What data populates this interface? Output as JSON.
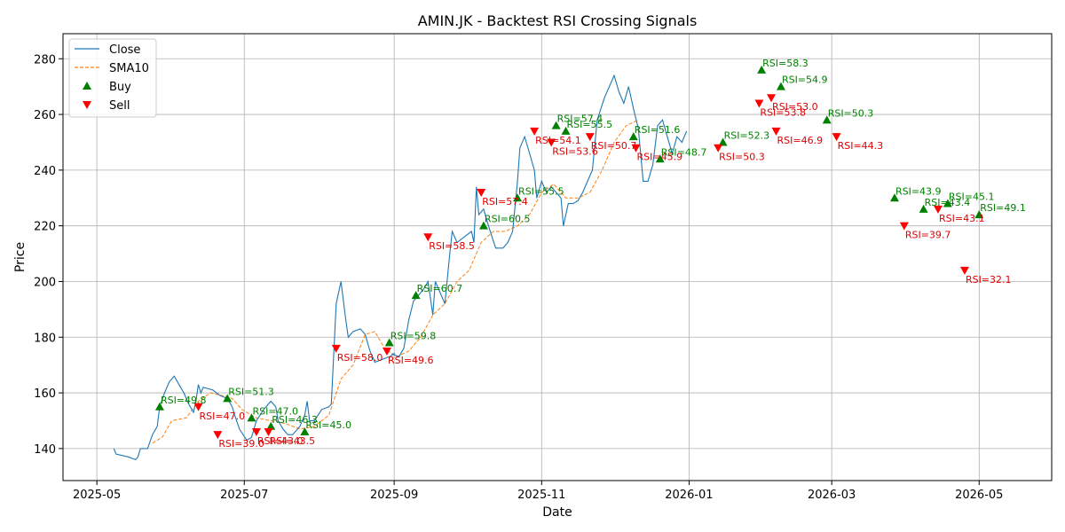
{
  "chart_data": {
    "type": "line",
    "title": "AMIN.JK - Backtest RSI Crossing Signals",
    "xlabel": "Date",
    "ylabel": "Price",
    "xlim": [
      "2025-04-17",
      "2026-05-31"
    ],
    "ylim": [
      128.5,
      289.0
    ],
    "grid": true,
    "legend_position": "top-left",
    "x_ticks": [
      "2025-05-01",
      "2025-07-01",
      "2025-09-01",
      "2025-11-01",
      "2026-01-01",
      "2026-03-01",
      "2026-05-01"
    ],
    "x_tick_labels": [
      "2025-05",
      "2025-07",
      "2025-09",
      "2025-11",
      "2026-01",
      "2026-03",
      "2026-05"
    ],
    "y_ticks": [
      140,
      160,
      180,
      200,
      220,
      240,
      260,
      280
    ],
    "colors": {
      "close": "#1f77b4",
      "sma": "#ff7f0e",
      "buy": "#008000",
      "sell": "#ff0000"
    },
    "legend": [
      {
        "label": "Close",
        "kind": "line",
        "color": "#1f77b4"
      },
      {
        "label": "SMA10",
        "kind": "dashed",
        "color": "#ff7f0e"
      },
      {
        "label": "Buy",
        "kind": "up-triangle",
        "color": "#008000"
      },
      {
        "label": "Sell",
        "kind": "down-triangle",
        "color": "#ff0000"
      }
    ],
    "series": [
      {
        "name": "Close",
        "points": [
          [
            "2025-05-08",
            140
          ],
          [
            "2025-05-09",
            138
          ],
          [
            "2025-05-14",
            137
          ],
          [
            "2025-05-17",
            136
          ],
          [
            "2025-05-18",
            137
          ],
          [
            "2025-05-19",
            140
          ],
          [
            "2025-05-22",
            140
          ],
          [
            "2025-05-24",
            145
          ],
          [
            "2025-05-26",
            148
          ],
          [
            "2025-05-27",
            155
          ],
          [
            "2025-05-29",
            160
          ],
          [
            "2025-05-31",
            164
          ],
          [
            "2025-06-02",
            166
          ],
          [
            "2025-06-04",
            163
          ],
          [
            "2025-06-06",
            160
          ],
          [
            "2025-06-08",
            156
          ],
          [
            "2025-06-10",
            153
          ],
          [
            "2025-06-11",
            157
          ],
          [
            "2025-06-12",
            163
          ],
          [
            "2025-06-13",
            160
          ],
          [
            "2025-06-14",
            162
          ],
          [
            "2025-06-18",
            161
          ],
          [
            "2025-06-21",
            159
          ],
          [
            "2025-06-24",
            158
          ],
          [
            "2025-06-26",
            155
          ],
          [
            "2025-06-27",
            152
          ],
          [
            "2025-06-29",
            147
          ],
          [
            "2025-07-02",
            143
          ],
          [
            "2025-07-04",
            144
          ],
          [
            "2025-07-06",
            150
          ],
          [
            "2025-07-09",
            154
          ],
          [
            "2025-07-12",
            157
          ],
          [
            "2025-07-14",
            155
          ],
          [
            "2025-07-15",
            150
          ],
          [
            "2025-07-17",
            147
          ],
          [
            "2025-07-19",
            145
          ],
          [
            "2025-07-21",
            145
          ],
          [
            "2025-07-24",
            148
          ],
          [
            "2025-07-26",
            152
          ],
          [
            "2025-07-27",
            157
          ],
          [
            "2025-07-28",
            150
          ],
          [
            "2025-07-30",
            150
          ],
          [
            "2025-08-02",
            154
          ],
          [
            "2025-08-05",
            155
          ],
          [
            "2025-08-06",
            156
          ],
          [
            "2025-08-08",
            192
          ],
          [
            "2025-08-10",
            200
          ],
          [
            "2025-08-12",
            186
          ],
          [
            "2025-08-13",
            180
          ],
          [
            "2025-08-15",
            182
          ],
          [
            "2025-08-18",
            183
          ],
          [
            "2025-08-20",
            181
          ],
          [
            "2025-08-22",
            175
          ],
          [
            "2025-08-24",
            171
          ],
          [
            "2025-08-27",
            172
          ],
          [
            "2025-08-30",
            173
          ],
          [
            "2025-09-01",
            174
          ],
          [
            "2025-08-31",
            174
          ],
          [
            "2025-09-03",
            173
          ],
          [
            "2025-09-05",
            176
          ],
          [
            "2025-09-07",
            186
          ],
          [
            "2025-09-09",
            193
          ],
          [
            "2025-09-11",
            195
          ],
          [
            "2025-09-13",
            197
          ],
          [
            "2025-09-15",
            200
          ],
          [
            "2025-09-17",
            188
          ],
          [
            "2025-09-18",
            200
          ],
          [
            "2025-09-20",
            196
          ],
          [
            "2025-09-22",
            192
          ],
          [
            "2025-09-24",
            210
          ],
          [
            "2025-09-25",
            218
          ],
          [
            "2025-09-27",
            214
          ],
          [
            "2025-09-30",
            216
          ],
          [
            "2025-10-03",
            218
          ],
          [
            "2025-10-04",
            214
          ],
          [
            "2025-10-05",
            234
          ],
          [
            "2025-10-06",
            224
          ],
          [
            "2025-10-08",
            226
          ],
          [
            "2025-10-10",
            220
          ],
          [
            "2025-10-13",
            212
          ],
          [
            "2025-10-16",
            212
          ],
          [
            "2025-10-18",
            214
          ],
          [
            "2025-10-20",
            218
          ],
          [
            "2025-10-22",
            236
          ],
          [
            "2025-10-23",
            248
          ],
          [
            "2025-10-25",
            252
          ],
          [
            "2025-10-27",
            246
          ],
          [
            "2025-10-29",
            240
          ],
          [
            "2025-10-30",
            230
          ],
          [
            "2025-11-01",
            236
          ],
          [
            "2025-11-03",
            232
          ],
          [
            "2025-11-05",
            234
          ],
          [
            "2025-11-07",
            232
          ],
          [
            "2025-11-09",
            230
          ],
          [
            "2025-11-10",
            220
          ],
          [
            "2025-11-12",
            228
          ],
          [
            "2025-11-14",
            228
          ],
          [
            "2025-11-16",
            229
          ],
          [
            "2025-11-18",
            232
          ],
          [
            "2025-11-20",
            236
          ],
          [
            "2025-11-22",
            240
          ],
          [
            "2025-11-24",
            258
          ],
          [
            "2025-11-27",
            266
          ],
          [
            "2025-11-30",
            272
          ],
          [
            "2025-12-01",
            274
          ],
          [
            "2025-12-03",
            268
          ],
          [
            "2025-12-05",
            264
          ],
          [
            "2025-12-07",
            270
          ],
          [
            "2025-12-09",
            262
          ],
          [
            "2025-12-11",
            255
          ],
          [
            "2025-12-13",
            236
          ],
          [
            "2025-12-15",
            236
          ],
          [
            "2025-12-17",
            242
          ],
          [
            "2025-12-19",
            256
          ],
          [
            "2025-12-21",
            258
          ],
          [
            "2025-12-23",
            252
          ],
          [
            "2025-12-25",
            246
          ],
          [
            "2025-12-27",
            252
          ],
          [
            "2025-12-29",
            250
          ],
          [
            "2025-12-31",
            254
          ]
        ]
      },
      {
        "name": "SMA10",
        "points": [
          [
            "2025-05-24",
            142
          ],
          [
            "2025-05-28",
            144
          ],
          [
            "2025-06-01",
            150
          ],
          [
            "2025-06-07",
            151
          ],
          [
            "2025-06-12",
            157
          ],
          [
            "2025-06-17",
            160
          ],
          [
            "2025-06-22",
            159
          ],
          [
            "2025-06-26",
            158
          ],
          [
            "2025-06-30",
            154
          ],
          [
            "2025-07-06",
            151
          ],
          [
            "2025-07-12",
            150
          ],
          [
            "2025-07-18",
            149
          ],
          [
            "2025-07-24",
            147
          ],
          [
            "2025-07-30",
            148
          ],
          [
            "2025-08-05",
            152
          ],
          [
            "2025-08-10",
            165
          ],
          [
            "2025-08-15",
            170
          ],
          [
            "2025-08-20",
            181
          ],
          [
            "2025-08-24",
            182
          ],
          [
            "2025-08-28",
            176
          ],
          [
            "2025-09-02",
            173
          ],
          [
            "2025-09-07",
            175
          ],
          [
            "2025-09-12",
            180
          ],
          [
            "2025-09-17",
            188
          ],
          [
            "2025-09-22",
            192
          ],
          [
            "2025-09-27",
            200
          ],
          [
            "2025-10-02",
            204
          ],
          [
            "2025-10-07",
            214
          ],
          [
            "2025-10-12",
            218
          ],
          [
            "2025-10-17",
            218
          ],
          [
            "2025-10-22",
            220
          ],
          [
            "2025-10-27",
            224
          ],
          [
            "2025-11-01",
            232
          ],
          [
            "2025-11-06",
            235
          ],
          [
            "2025-11-11",
            230
          ],
          [
            "2025-11-16",
            230
          ],
          [
            "2025-11-21",
            232
          ],
          [
            "2025-11-26",
            240
          ],
          [
            "2025-12-01",
            250
          ],
          [
            "2025-12-06",
            256
          ],
          [
            "2025-12-11",
            258
          ]
        ]
      }
    ],
    "buy_signals": [
      {
        "date": "2025-05-27",
        "price": 155,
        "label": "RSI=49.8"
      },
      {
        "date": "2025-06-24",
        "price": 158,
        "label": "RSI=51.3"
      },
      {
        "date": "2025-07-04",
        "price": 151,
        "label": "RSI=47.0"
      },
      {
        "date": "2025-07-12",
        "price": 148,
        "label": "RSI=46.3"
      },
      {
        "date": "2025-07-26",
        "price": 146,
        "label": "RSI=45.0"
      },
      {
        "date": "2025-08-30",
        "price": 178,
        "label": "RSI=59.8"
      },
      {
        "date": "2025-09-10",
        "price": 195,
        "label": "RSI=60.7"
      },
      {
        "date": "2025-10-08",
        "price": 220,
        "label": "RSI=60.5"
      },
      {
        "date": "2025-10-22",
        "price": 230,
        "label": "RSI=55.5"
      },
      {
        "date": "2025-11-07",
        "price": 256,
        "label": "RSI=57.4"
      },
      {
        "date": "2025-11-11",
        "price": 254,
        "label": "RSI=55.5"
      },
      {
        "date": "2025-12-09",
        "price": 252,
        "label": "RSI=51.6"
      },
      {
        "date": "2025-12-20",
        "price": 244,
        "label": "RSI=48.7"
      },
      {
        "date": "2026-01-15",
        "price": 250,
        "label": "RSI=52.3"
      },
      {
        "date": "2026-01-31",
        "price": 276,
        "label": "RSI=58.3"
      },
      {
        "date": "2026-02-08",
        "price": 270,
        "label": "RSI=54.9"
      },
      {
        "date": "2026-02-27",
        "price": 258,
        "label": "RSI=50.3"
      },
      {
        "date": "2026-03-27",
        "price": 230,
        "label": "RSI=43.9"
      },
      {
        "date": "2026-04-08",
        "price": 226,
        "label": "RSI=43.4"
      },
      {
        "date": "2026-04-18",
        "price": 228,
        "label": "RSI=45.1"
      },
      {
        "date": "2026-05-01",
        "price": 224,
        "label": "RSI=49.1"
      }
    ],
    "sell_signals": [
      {
        "date": "2025-06-12",
        "price": 155,
        "label": "RSI=47.0"
      },
      {
        "date": "2025-06-20",
        "price": 145,
        "label": "RSI=39.0"
      },
      {
        "date": "2025-07-06",
        "price": 146,
        "label": "RSI=43.0"
      },
      {
        "date": "2025-07-11",
        "price": 146,
        "label": "RSI=43.5"
      },
      {
        "date": "2025-08-08",
        "price": 176,
        "label": "RSI=58.0"
      },
      {
        "date": "2025-08-29",
        "price": 175,
        "label": "RSI=49.6"
      },
      {
        "date": "2025-09-15",
        "price": 216,
        "label": "RSI=58.5"
      },
      {
        "date": "2025-10-07",
        "price": 232,
        "label": "RSI=57.4"
      },
      {
        "date": "2025-10-29",
        "price": 254,
        "label": "RSI=54.1"
      },
      {
        "date": "2025-11-05",
        "price": 250,
        "label": "RSI=53.6"
      },
      {
        "date": "2025-11-21",
        "price": 252,
        "label": "RSI=50.7"
      },
      {
        "date": "2025-12-10",
        "price": 248,
        "label": "RSI=45.9"
      },
      {
        "date": "2026-01-13",
        "price": 248,
        "label": "RSI=50.3"
      },
      {
        "date": "2026-01-30",
        "price": 264,
        "label": "RSI=53.8"
      },
      {
        "date": "2026-02-04",
        "price": 266,
        "label": "RSI=53.0"
      },
      {
        "date": "2026-02-06",
        "price": 254,
        "label": "RSI=46.9"
      },
      {
        "date": "2026-03-03",
        "price": 252,
        "label": "RSI=44.3"
      },
      {
        "date": "2026-03-31",
        "price": 220,
        "label": "RSI=39.7"
      },
      {
        "date": "2026-04-14",
        "price": 226,
        "label": "RSI=43.1"
      },
      {
        "date": "2026-04-25",
        "price": 204,
        "label": "RSI=32.1"
      }
    ]
  }
}
